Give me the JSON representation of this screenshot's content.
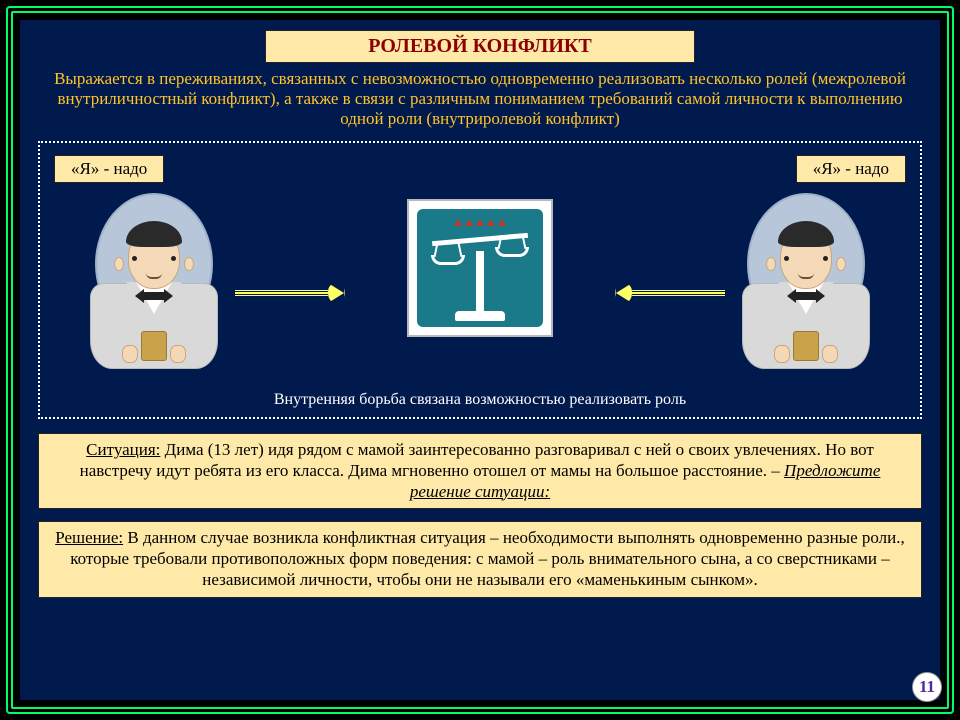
{
  "title": "РОЛЕВОЙ КОНФЛИКТ",
  "intro": "Выражается в переживаниях, связанных с невозможностью одновременно реализовать несколько ролей (межролевой внутриличностный конфликт), а также в связи с различным пониманием требований самой личности к выполнению одной роли (внутриролевой конфликт)",
  "diagram": {
    "left_label": "«Я» - надо",
    "right_label": "«Я» - надо",
    "caption": "Внутренняя борьба связана возможностью реализовать роль"
  },
  "situation": {
    "label": "Ситуация:",
    "text": " Дима (13 лет) идя рядом с мамой заинтересованно разговаривал с ней о своих увлечениях. Но вот навстречу идут ребята из его класса. Дима мгновенно отошел от мамы на большое расстояние. – ",
    "prompt": "Предложите решение ситуации:"
  },
  "solution": {
    "label": "Решение:",
    "text": " В данном случае возникла конфликтная ситуация – необходимости выполнять одновременно разные роли., которые требовали противоположных форм поведения: с мамой – роль внимательного сына, а со сверстниками – независимой личности, чтобы они не называли его «маменькиным сынком»."
  },
  "page_number": "11",
  "colors": {
    "frame": "#00ff66",
    "slide_bg": "#001a4d",
    "badge_bg": "#ffe9a8",
    "title_color": "#8b0000",
    "intro_color": "#ffc32b",
    "arrow_color": "#ffff66",
    "scale_bg": "#1b7a8a",
    "oval_bg": "#b8c6d9"
  }
}
